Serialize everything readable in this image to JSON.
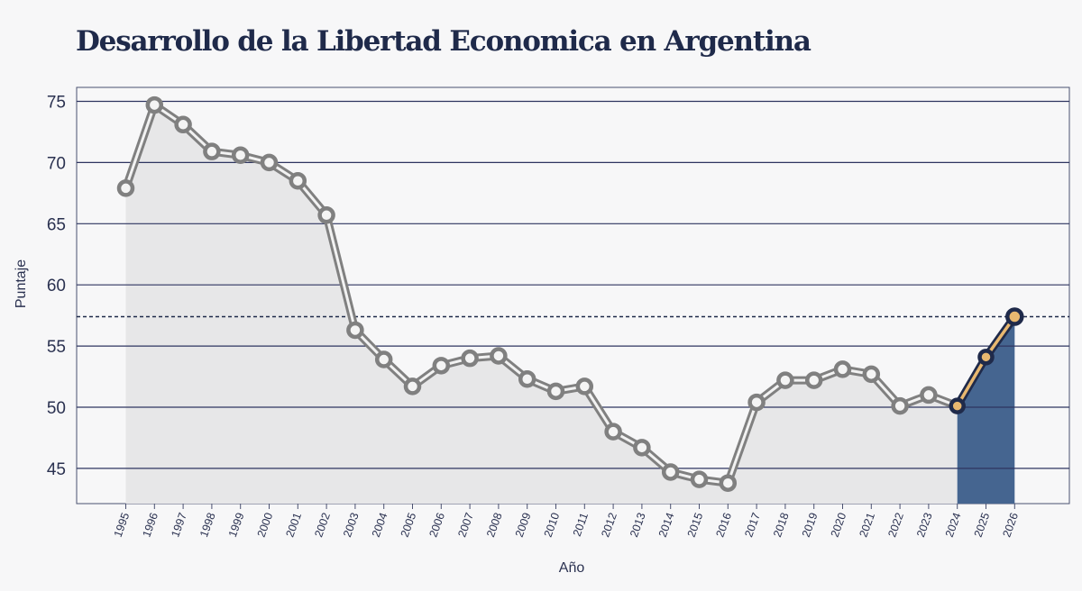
{
  "chart_data": {
    "type": "line",
    "title": "Desarrollo de la Libertad Economica en Argentina",
    "xlabel": "Año",
    "ylabel": "Puntaje",
    "ylim": [
      42,
      76
    ],
    "yticks": [
      45,
      50,
      55,
      60,
      65,
      70,
      75
    ],
    "grid": true,
    "reference_line": 57.4,
    "series": [
      {
        "x": [
          "1995",
          "1996",
          "1997",
          "1998",
          "1999",
          "2000",
          "2001",
          "2002",
          "2003",
          "2004",
          "2005",
          "2006",
          "2007",
          "2008",
          "2009",
          "2010",
          "2011",
          "2012",
          "2013",
          "2014",
          "2015",
          "2016",
          "2017",
          "2018",
          "2019",
          "2020",
          "2021",
          "2022",
          "2023",
          "2024"
        ],
        "values": [
          67.9,
          74.7,
          73.1,
          70.9,
          70.6,
          70.0,
          68.5,
          65.7,
          56.3,
          53.9,
          51.7,
          53.4,
          54.0,
          54.2,
          52.3,
          51.3,
          51.7,
          48.0,
          46.7,
          44.7,
          44.1,
          43.8,
          50.4,
          52.2,
          52.2,
          53.1,
          52.7,
          50.1,
          51.0,
          50.1
        ],
        "color": "#808080"
      },
      {
        "x": [
          "2024",
          "2025",
          "2026"
        ],
        "values": [
          50.1,
          54.1,
          57.4
        ],
        "color": "#e8b870"
      }
    ]
  }
}
